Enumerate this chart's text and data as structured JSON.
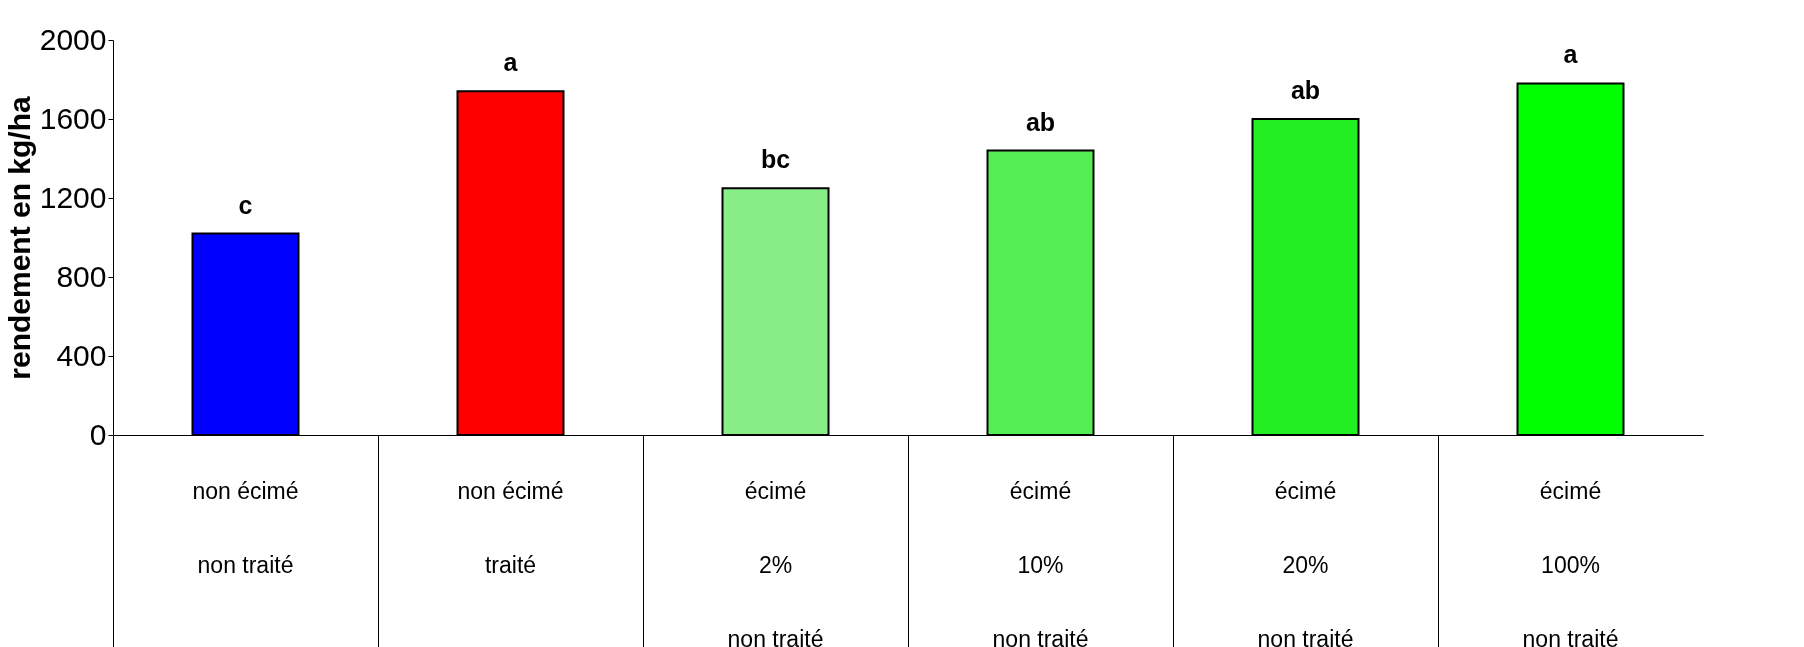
{
  "chart_data": {
    "type": "bar",
    "ylabel": "rendement en kg/ha",
    "categories": [
      "non écimé\n\nnon traité",
      "non écimé\n\ntraité",
      "écimé\n2%\nnon traité",
      "écimé\n10%\nnon traité",
      "écimé\n20%\nnon traité",
      "écimé\n100%\nnon traité"
    ],
    "values": [
      1020,
      1740,
      1250,
      1440,
      1600,
      1780
    ],
    "colors": [
      "#0000ff",
      "#ff0000",
      "#88ee88",
      "#55ee55",
      "#22ee22",
      "#00ff00"
    ],
    "value_labels": [
      "c",
      "a",
      "bc",
      "ab",
      "ab",
      "a"
    ],
    "ylim": [
      0,
      2000
    ],
    "yticks": [
      0,
      400,
      800,
      1200,
      1600,
      2000
    ],
    "grid": false
  }
}
